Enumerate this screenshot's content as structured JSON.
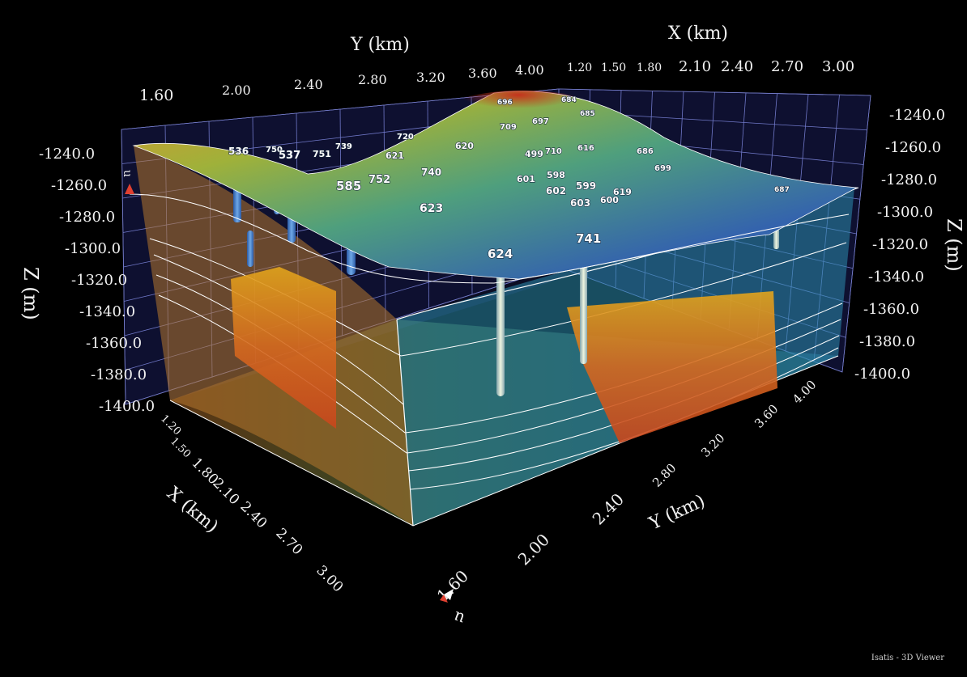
{
  "app": {
    "footer": "Isatis - 3D Viewer"
  },
  "axes": {
    "y_top_title": "Y (km)",
    "x_top_title": "X (km)",
    "z_left_title": "Z (m)",
    "z_right_title": "Z (m)",
    "x_bottom_title": "X (km)",
    "y_bottom_title": "Y (km)",
    "y_top_ticks": [
      "1.60",
      "2.00",
      "2.40",
      "2.80",
      "3.20",
      "3.60",
      "4.00"
    ],
    "x_top_ticks": [
      "1.20",
      "1.50",
      "1.80",
      "2.10",
      "2.40",
      "2.70",
      "3.00"
    ],
    "z_left_ticks": [
      "-1240.0",
      "-1260.0",
      "-1280.0",
      "-1300.0",
      "-1320.0",
      "-1340.0",
      "-1360.0",
      "-1380.0",
      "-1400.0"
    ],
    "z_right_ticks": [
      "-1240.0",
      "-1260.0",
      "-1280.0",
      "-1300.0",
      "-1320.0",
      "-1340.0",
      "-1360.0",
      "-1380.0",
      "-1400.0"
    ],
    "x_bottom_ticks": [
      "1.20",
      "1.50",
      "1.80",
      "2.10",
      "2.40",
      "2.70",
      "3.00"
    ],
    "y_bottom_ticks": [
      "1.60",
      "2.00",
      "2.40",
      "2.80",
      "3.20",
      "3.60",
      "4.00"
    ],
    "corner_markers": [
      "u",
      "u"
    ]
  },
  "wells": [
    "536",
    "750",
    "537",
    "751",
    "739",
    "720",
    "621",
    "620",
    "696",
    "684",
    "709",
    "697",
    "685",
    "499",
    "710",
    "616",
    "686",
    "699",
    "601",
    "598",
    "740",
    "752",
    "585",
    "623",
    "602",
    "599",
    "600",
    "619",
    "603",
    "687",
    "624",
    "741"
  ],
  "colors": {
    "background": "#000000",
    "grid": "#8088d8",
    "frame": "#ffffff",
    "surface_high": "#d13a1f",
    "surface_mid": "#6fae4a",
    "surface_low": "#2f5fa8"
  }
}
